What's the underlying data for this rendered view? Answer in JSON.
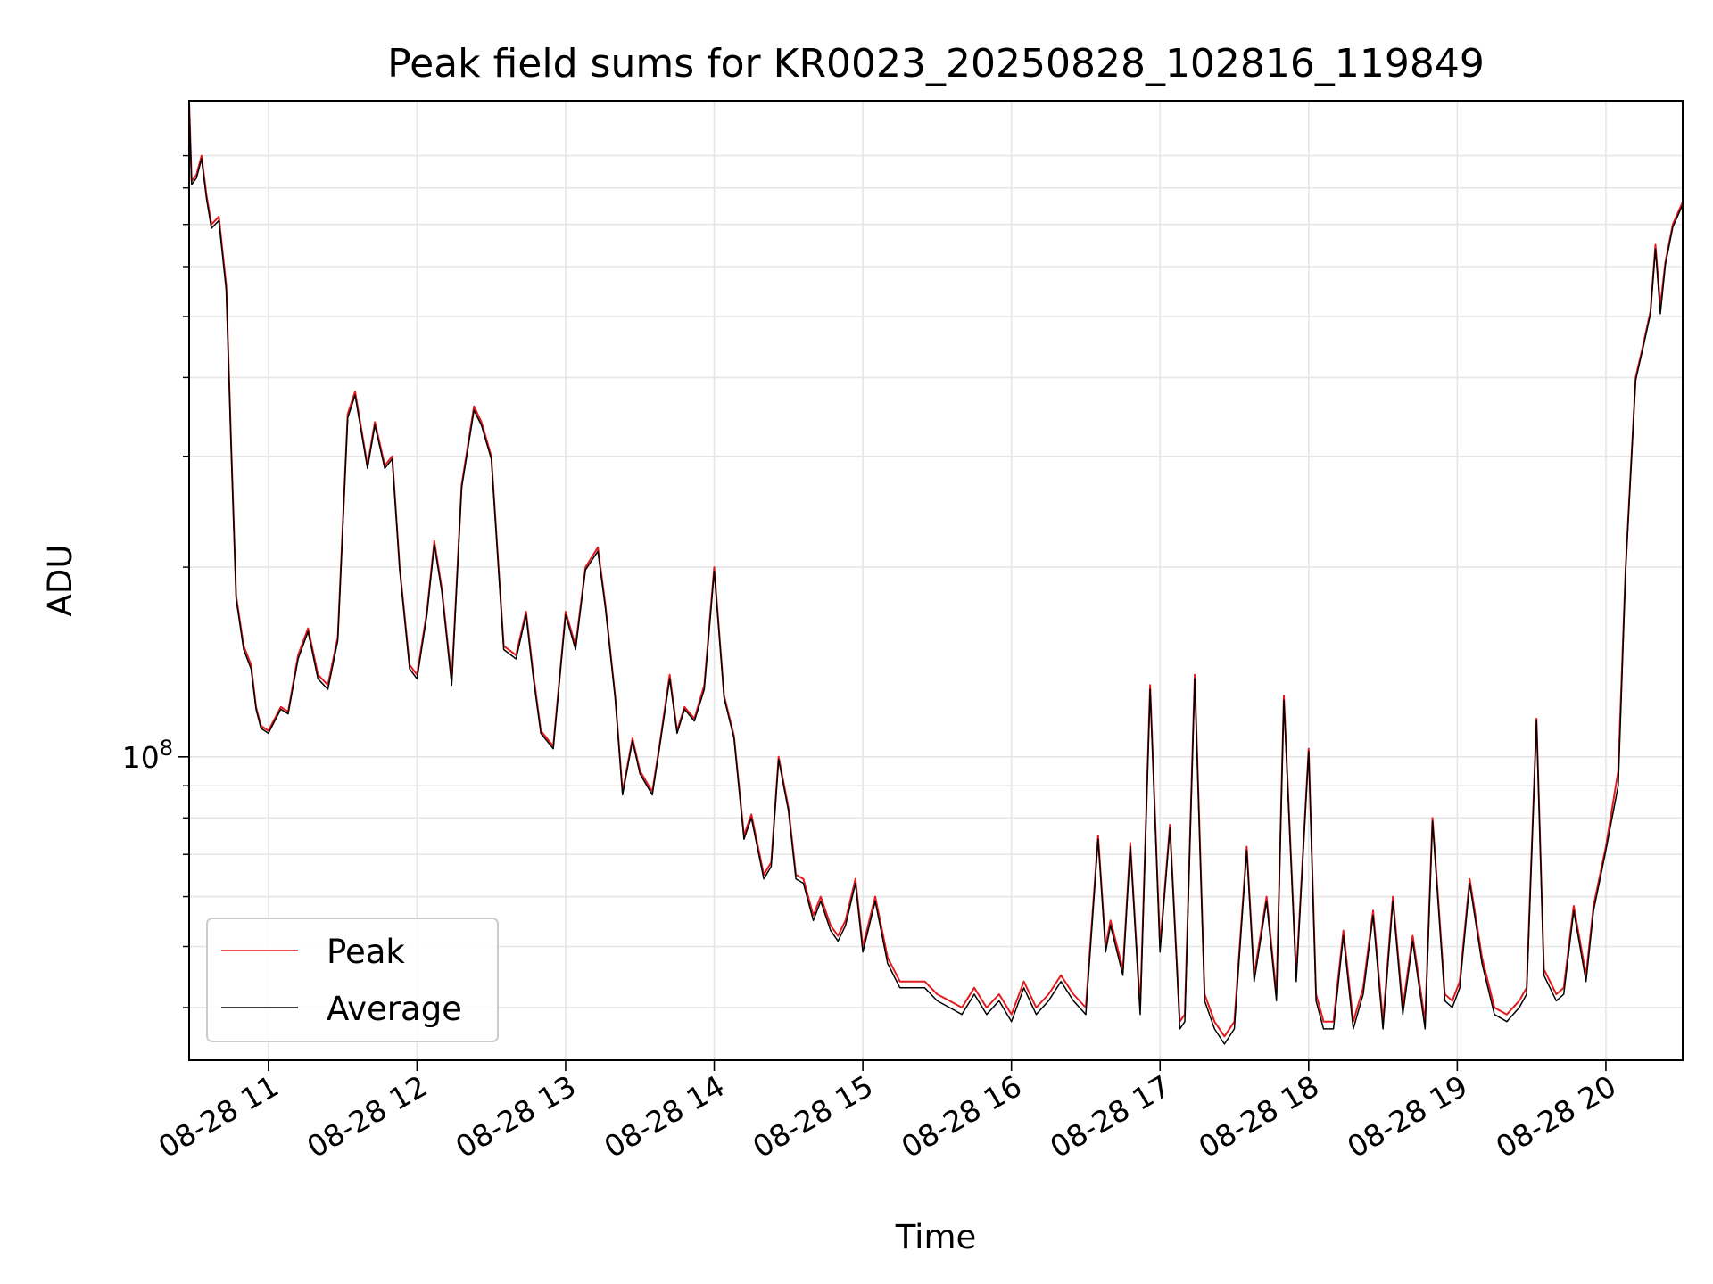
{
  "chart_data": {
    "type": "line",
    "title": "Peak field sums for KR0023_20250828_102816_119849",
    "xlabel": "Time",
    "ylabel": "ADU",
    "y_scale": "log",
    "xlim": [
      "2025-08-28 10:28",
      "2025-08-28 20:31"
    ],
    "ylim": [
      33000000,
      1100000000
    ],
    "grid": true,
    "legend_position": "lower-left",
    "x_ticks": [
      "08-28 11",
      "08-28 12",
      "08-28 13",
      "08-28 14",
      "08-28 15",
      "08-28 16",
      "08-28 17",
      "08-28 18",
      "08-28 19",
      "08-28 20"
    ],
    "y_tick_label": {
      "base": "10",
      "exponent": "8",
      "value": 100000000
    },
    "series": [
      {
        "name": "Peak",
        "color": "#e41a1c",
        "x": [
          "2025-08-28 10:28",
          "2025-08-28 10:29",
          "2025-08-28 10:31",
          "2025-08-28 10:33",
          "2025-08-28 10:35",
          "2025-08-28 10:37",
          "2025-08-28 10:40",
          "2025-08-28 10:43",
          "2025-08-28 10:45",
          "2025-08-28 10:47",
          "2025-08-28 10:50",
          "2025-08-28 10:53",
          "2025-08-28 10:55",
          "2025-08-28 10:57",
          "2025-08-28 11:00",
          "2025-08-28 11:05",
          "2025-08-28 11:08",
          "2025-08-28 11:12",
          "2025-08-28 11:16",
          "2025-08-28 11:20",
          "2025-08-28 11:24",
          "2025-08-28 11:28",
          "2025-08-28 11:32",
          "2025-08-28 11:35",
          "2025-08-28 11:40",
          "2025-08-28 11:43",
          "2025-08-28 11:47",
          "2025-08-28 11:50",
          "2025-08-28 11:53",
          "2025-08-28 11:57",
          "2025-08-28 12:00",
          "2025-08-28 12:04",
          "2025-08-28 12:07",
          "2025-08-28 12:10",
          "2025-08-28 12:14",
          "2025-08-28 12:18",
          "2025-08-28 12:23",
          "2025-08-28 12:26",
          "2025-08-28 12:30",
          "2025-08-28 12:35",
          "2025-08-28 12:40",
          "2025-08-28 12:44",
          "2025-08-28 12:47",
          "2025-08-28 12:50",
          "2025-08-28 12:55",
          "2025-08-28 13:00",
          "2025-08-28 13:04",
          "2025-08-28 13:08",
          "2025-08-28 13:13",
          "2025-08-28 13:16",
          "2025-08-28 13:20",
          "2025-08-28 13:23",
          "2025-08-28 13:27",
          "2025-08-28 13:30",
          "2025-08-28 13:35",
          "2025-08-28 13:38",
          "2025-08-28 13:42",
          "2025-08-28 13:45",
          "2025-08-28 13:48",
          "2025-08-28 13:52",
          "2025-08-28 13:56",
          "2025-08-28 14:00",
          "2025-08-28 14:04",
          "2025-08-28 14:08",
          "2025-08-28 14:12",
          "2025-08-28 14:15",
          "2025-08-28 14:20",
          "2025-08-28 14:23",
          "2025-08-28 14:26",
          "2025-08-28 14:30",
          "2025-08-28 14:33",
          "2025-08-28 14:36",
          "2025-08-28 14:40",
          "2025-08-28 14:43",
          "2025-08-28 14:47",
          "2025-08-28 14:50",
          "2025-08-28 14:53",
          "2025-08-28 14:57",
          "2025-08-28 15:00",
          "2025-08-28 15:05",
          "2025-08-28 15:10",
          "2025-08-28 15:15",
          "2025-08-28 15:20",
          "2025-08-28 15:25",
          "2025-08-28 15:30",
          "2025-08-28 15:35",
          "2025-08-28 15:40",
          "2025-08-28 15:45",
          "2025-08-28 15:50",
          "2025-08-28 15:55",
          "2025-08-28 16:00",
          "2025-08-28 16:05",
          "2025-08-28 16:10",
          "2025-08-28 16:15",
          "2025-08-28 16:20",
          "2025-08-28 16:25",
          "2025-08-28 16:30",
          "2025-08-28 16:35",
          "2025-08-28 16:38",
          "2025-08-28 16:40",
          "2025-08-28 16:45",
          "2025-08-28 16:48",
          "2025-08-28 16:52",
          "2025-08-28 16:56",
          "2025-08-28 17:00",
          "2025-08-28 17:04",
          "2025-08-28 17:08",
          "2025-08-28 17:10",
          "2025-08-28 17:14",
          "2025-08-28 17:18",
          "2025-08-28 17:22",
          "2025-08-28 17:26",
          "2025-08-28 17:30",
          "2025-08-28 17:35",
          "2025-08-28 17:38",
          "2025-08-28 17:43",
          "2025-08-28 17:47",
          "2025-08-28 17:50",
          "2025-08-28 17:55",
          "2025-08-28 18:00",
          "2025-08-28 18:03",
          "2025-08-28 18:06",
          "2025-08-28 18:10",
          "2025-08-28 18:14",
          "2025-08-28 18:18",
          "2025-08-28 18:22",
          "2025-08-28 18:26",
          "2025-08-28 18:30",
          "2025-08-28 18:34",
          "2025-08-28 18:38",
          "2025-08-28 18:42",
          "2025-08-28 18:47",
          "2025-08-28 18:50",
          "2025-08-28 18:55",
          "2025-08-28 18:58",
          "2025-08-28 19:01",
          "2025-08-28 19:05",
          "2025-08-28 19:10",
          "2025-08-28 19:15",
          "2025-08-28 19:20",
          "2025-08-28 19:25",
          "2025-08-28 19:28",
          "2025-08-28 19:32",
          "2025-08-28 19:35",
          "2025-08-28 19:40",
          "2025-08-28 19:43",
          "2025-08-28 19:47",
          "2025-08-28 19:52",
          "2025-08-28 19:55",
          "2025-08-28 20:00",
          "2025-08-28 20:05",
          "2025-08-28 20:08",
          "2025-08-28 20:12",
          "2025-08-28 20:15",
          "2025-08-28 20:18",
          "2025-08-28 20:20",
          "2025-08-28 20:22",
          "2025-08-28 20:24",
          "2025-08-28 20:27",
          "2025-08-28 20:31"
        ],
        "values": [
          1100000000,
          820000000,
          840000000,
          900000000,
          780000000,
          700000000,
          720000000,
          560000000,
          310000000,
          180000000,
          150000000,
          140000000,
          120000000,
          112000000,
          110000000,
          120000000,
          118000000,
          145000000,
          160000000,
          135000000,
          130000000,
          155000000,
          350000000,
          380000000,
          290000000,
          340000000,
          290000000,
          300000000,
          200000000,
          140000000,
          135000000,
          170000000,
          220000000,
          185000000,
          132000000,
          270000000,
          360000000,
          340000000,
          300000000,
          150000000,
          145000000,
          170000000,
          135000000,
          110000000,
          104000000,
          170000000,
          150000000,
          200000000,
          215000000,
          175000000,
          125000000,
          88000000,
          107000000,
          95000000,
          88000000,
          105000000,
          135000000,
          110000000,
          120000000,
          115000000,
          130000000,
          200000000,
          125000000,
          108000000,
          75000000,
          81000000,
          65000000,
          68000000,
          100000000,
          83000000,
          65000000,
          64000000,
          56000000,
          60000000,
          54000000,
          52000000,
          55000000,
          64000000,
          50000000,
          60000000,
          48000000,
          44000000,
          44000000,
          44000000,
          42000000,
          41000000,
          40000000,
          43000000,
          40000000,
          42000000,
          39000000,
          44000000,
          40000000,
          42000000,
          45000000,
          42000000,
          40000000,
          75000000,
          50000000,
          55000000,
          46000000,
          73000000,
          40000000,
          130000000,
          50000000,
          78000000,
          38000000,
          39000000,
          135000000,
          42000000,
          38000000,
          36000000,
          38000000,
          72000000,
          45000000,
          60000000,
          42000000,
          125000000,
          45000000,
          103000000,
          42000000,
          38000000,
          38000000,
          53000000,
          38000000,
          43000000,
          57000000,
          38000000,
          60000000,
          40000000,
          52000000,
          38000000,
          80000000,
          42000000,
          41000000,
          44000000,
          64000000,
          48000000,
          40000000,
          39000000,
          41000000,
          43000000,
          115000000,
          46000000,
          42000000,
          43000000,
          58000000,
          45000000,
          58000000,
          72000000,
          95000000,
          200000000,
          400000000,
          450000000,
          510000000,
          650000000,
          520000000,
          610000000,
          700000000,
          760000000
        ]
      },
      {
        "name": "Average",
        "color": "#000000",
        "x": [
          "2025-08-28 10:28",
          "2025-08-28 10:29",
          "2025-08-28 10:31",
          "2025-08-28 10:33",
          "2025-08-28 10:35",
          "2025-08-28 10:37",
          "2025-08-28 10:40",
          "2025-08-28 10:43",
          "2025-08-28 10:45",
          "2025-08-28 10:47",
          "2025-08-28 10:50",
          "2025-08-28 10:53",
          "2025-08-28 10:55",
          "2025-08-28 10:57",
          "2025-08-28 11:00",
          "2025-08-28 11:05",
          "2025-08-28 11:08",
          "2025-08-28 11:12",
          "2025-08-28 11:16",
          "2025-08-28 11:20",
          "2025-08-28 11:24",
          "2025-08-28 11:28",
          "2025-08-28 11:32",
          "2025-08-28 11:35",
          "2025-08-28 11:40",
          "2025-08-28 11:43",
          "2025-08-28 11:47",
          "2025-08-28 11:50",
          "2025-08-28 11:53",
          "2025-08-28 11:57",
          "2025-08-28 12:00",
          "2025-08-28 12:04",
          "2025-08-28 12:07",
          "2025-08-28 12:10",
          "2025-08-28 12:14",
          "2025-08-28 12:18",
          "2025-08-28 12:23",
          "2025-08-28 12:26",
          "2025-08-28 12:30",
          "2025-08-28 12:35",
          "2025-08-28 12:40",
          "2025-08-28 12:44",
          "2025-08-28 12:47",
          "2025-08-28 12:50",
          "2025-08-28 12:55",
          "2025-08-28 13:00",
          "2025-08-28 13:04",
          "2025-08-28 13:08",
          "2025-08-28 13:13",
          "2025-08-28 13:16",
          "2025-08-28 13:20",
          "2025-08-28 13:23",
          "2025-08-28 13:27",
          "2025-08-28 13:30",
          "2025-08-28 13:35",
          "2025-08-28 13:38",
          "2025-08-28 13:42",
          "2025-08-28 13:45",
          "2025-08-28 13:48",
          "2025-08-28 13:52",
          "2025-08-28 13:56",
          "2025-08-28 14:00",
          "2025-08-28 14:04",
          "2025-08-28 14:08",
          "2025-08-28 14:12",
          "2025-08-28 14:15",
          "2025-08-28 14:20",
          "2025-08-28 14:23",
          "2025-08-28 14:26",
          "2025-08-28 14:30",
          "2025-08-28 14:33",
          "2025-08-28 14:36",
          "2025-08-28 14:40",
          "2025-08-28 14:43",
          "2025-08-28 14:47",
          "2025-08-28 14:50",
          "2025-08-28 14:53",
          "2025-08-28 14:57",
          "2025-08-28 15:00",
          "2025-08-28 15:05",
          "2025-08-28 15:10",
          "2025-08-28 15:15",
          "2025-08-28 15:20",
          "2025-08-28 15:25",
          "2025-08-28 15:30",
          "2025-08-28 15:35",
          "2025-08-28 15:40",
          "2025-08-28 15:45",
          "2025-08-28 15:50",
          "2025-08-28 15:55",
          "2025-08-28 16:00",
          "2025-08-28 16:05",
          "2025-08-28 16:10",
          "2025-08-28 16:15",
          "2025-08-28 16:20",
          "2025-08-28 16:25",
          "2025-08-28 16:30",
          "2025-08-28 16:35",
          "2025-08-28 16:38",
          "2025-08-28 16:40",
          "2025-08-28 16:45",
          "2025-08-28 16:48",
          "2025-08-28 16:52",
          "2025-08-28 16:56",
          "2025-08-28 17:00",
          "2025-08-28 17:04",
          "2025-08-28 17:08",
          "2025-08-28 17:10",
          "2025-08-28 17:14",
          "2025-08-28 17:18",
          "2025-08-28 17:22",
          "2025-08-28 17:26",
          "2025-08-28 17:30",
          "2025-08-28 17:35",
          "2025-08-28 17:38",
          "2025-08-28 17:43",
          "2025-08-28 17:47",
          "2025-08-28 17:50",
          "2025-08-28 17:55",
          "2025-08-28 18:00",
          "2025-08-28 18:03",
          "2025-08-28 18:06",
          "2025-08-28 18:10",
          "2025-08-28 18:14",
          "2025-08-28 18:18",
          "2025-08-28 18:22",
          "2025-08-28 18:26",
          "2025-08-28 18:30",
          "2025-08-28 18:34",
          "2025-08-28 18:38",
          "2025-08-28 18:42",
          "2025-08-28 18:47",
          "2025-08-28 18:50",
          "2025-08-28 18:55",
          "2025-08-28 18:58",
          "2025-08-28 19:01",
          "2025-08-28 19:05",
          "2025-08-28 19:10",
          "2025-08-28 19:15",
          "2025-08-28 19:20",
          "2025-08-28 19:25",
          "2025-08-28 19:28",
          "2025-08-28 19:32",
          "2025-08-28 19:35",
          "2025-08-28 19:40",
          "2025-08-28 19:43",
          "2025-08-28 19:47",
          "2025-08-28 19:52",
          "2025-08-28 19:55",
          "2025-08-28 20:00",
          "2025-08-28 20:05",
          "2025-08-28 20:08",
          "2025-08-28 20:12",
          "2025-08-28 20:15",
          "2025-08-28 20:18",
          "2025-08-28 20:20",
          "2025-08-28 20:22",
          "2025-08-28 20:24",
          "2025-08-28 20:27",
          "2025-08-28 20:31"
        ],
        "values": [
          1080000000,
          810000000,
          830000000,
          890000000,
          770000000,
          690000000,
          710000000,
          550000000,
          305000000,
          178000000,
          148000000,
          138000000,
          119000000,
          111000000,
          109000000,
          119000000,
          117000000,
          143000000,
          158000000,
          133000000,
          128000000,
          153000000,
          345000000,
          375000000,
          287000000,
          336000000,
          287000000,
          297000000,
          198000000,
          138000000,
          133000000,
          168000000,
          217000000,
          183000000,
          130000000,
          267000000,
          355000000,
          336000000,
          297000000,
          148000000,
          143000000,
          168000000,
          133000000,
          109000000,
          103000000,
          168000000,
          148000000,
          198000000,
          212000000,
          173000000,
          124000000,
          87000000,
          106000000,
          94000000,
          87000000,
          104000000,
          133000000,
          109000000,
          119000000,
          114000000,
          128000000,
          197000000,
          124000000,
          107000000,
          74000000,
          80000000,
          64000000,
          67000000,
          99000000,
          82000000,
          64000000,
          63000000,
          55000000,
          59000000,
          53000000,
          51000000,
          54000000,
          63000000,
          49000000,
          59000000,
          47000000,
          43000000,
          43000000,
          43000000,
          41000000,
          40000000,
          39000000,
          42000000,
          39000000,
          41000000,
          38000000,
          43000000,
          39000000,
          41000000,
          44000000,
          41000000,
          39000000,
          74000000,
          49000000,
          54000000,
          45000000,
          72000000,
          39000000,
          128000000,
          49000000,
          77000000,
          37000000,
          38000000,
          133000000,
          41000000,
          37000000,
          35000000,
          37000000,
          71000000,
          44000000,
          59000000,
          41000000,
          123000000,
          44000000,
          102000000,
          41000000,
          37000000,
          37000000,
          52000000,
          37000000,
          42000000,
          56000000,
          37000000,
          59000000,
          39000000,
          51000000,
          37000000,
          79000000,
          41000000,
          40000000,
          43000000,
          63000000,
          47000000,
          39000000,
          38000000,
          40000000,
          42000000,
          114000000,
          45000000,
          41000000,
          42000000,
          57000000,
          44000000,
          57000000,
          71000000,
          90000000,
          198000000,
          396000000,
          446000000,
          505000000,
          640000000,
          505000000,
          604000000,
          693000000,
          752000000
        ]
      }
    ]
  }
}
